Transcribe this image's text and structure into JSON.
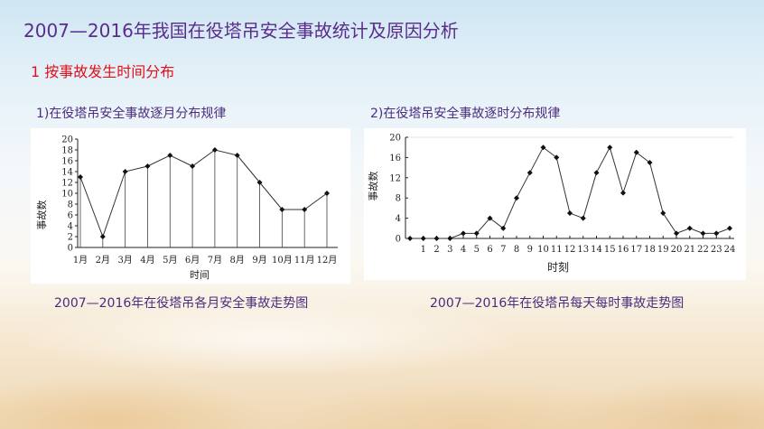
{
  "title": "2007—2016年我国在役塔吊安全事故统计及原因分析",
  "section": "1 按事故发生时间分布",
  "charts": {
    "monthly_subtitle": "1)在役塔吊安全事故逐月分布规律",
    "hourly_subtitle": "2)在役塔吊安全事故逐时分布规律",
    "monthly_caption": "2007—2016年在役塔吊各月安全事故走势图",
    "hourly_caption": "2007—2016年在役塔吊每天每时事故走势图"
  },
  "colors": {
    "title": "#5a2d8c",
    "section": "#e0101a",
    "line": "#333333"
  },
  "chart_data": [
    {
      "type": "line",
      "ylabel": "事故数",
      "xlabel": "时间",
      "categories": [
        "1月",
        "2月",
        "3月",
        "4月",
        "5月",
        "6月",
        "7月",
        "8月",
        "9月",
        "10月",
        "11月",
        "12月"
      ],
      "values": [
        13,
        2,
        14,
        15,
        17,
        15,
        18,
        17,
        12,
        7,
        7,
        10
      ],
      "ylim": [
        0,
        20
      ],
      "yticks": [
        0,
        2,
        4,
        6,
        8,
        10,
        12,
        14,
        16,
        18,
        20
      ],
      "drop_lines": true
    },
    {
      "type": "line",
      "ylabel": "事故数",
      "xlabel": "时刻",
      "categories": [
        "1",
        "2",
        "3",
        "4",
        "5",
        "6",
        "7",
        "8",
        "9",
        "10",
        "11",
        "12",
        "13",
        "14",
        "15",
        "16",
        "17",
        "18",
        "19",
        "20",
        "21",
        "22",
        "23",
        "24"
      ],
      "values": [
        0,
        0,
        0,
        0,
        1,
        1,
        4,
        2,
        8,
        13,
        18,
        16,
        5,
        4,
        13,
        18,
        9,
        17,
        15,
        5,
        1,
        2,
        1,
        1,
        2
      ],
      "x": [
        0,
        1,
        2,
        3,
        4,
        5,
        6,
        7,
        8,
        9,
        10,
        11,
        12,
        13,
        14,
        15,
        16,
        17,
        18,
        19,
        20,
        21,
        22,
        23,
        24
      ],
      "ylim": [
        0,
        20
      ],
      "yticks": [
        0,
        4,
        8,
        12,
        16,
        20
      ]
    }
  ]
}
